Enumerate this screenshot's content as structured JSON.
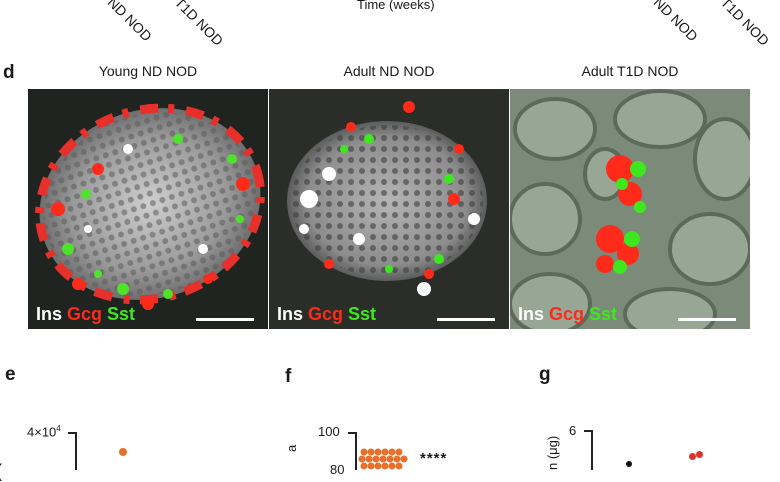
{
  "top_fragments": {
    "time_label": "Time (weeks)",
    "left_labels": [
      "ND NOD",
      "T1D NOD"
    ],
    "right_labels": [
      "ND NOD",
      "T1D NOD"
    ]
  },
  "panel_d": {
    "letter": "d",
    "images": [
      {
        "title": "Young ND NOD",
        "stain": {
          "ins": "Ins",
          "gcg": "Gcg",
          "sst": "Sst"
        }
      },
      {
        "title": "Adult ND NOD",
        "stain": {
          "ins": "Ins",
          "gcg": "Gcg",
          "sst": "Sst"
        }
      },
      {
        "title": "Adult T1D NOD",
        "stain": {
          "ins": "Ins",
          "gcg": "Gcg",
          "sst": "Sst"
        }
      }
    ],
    "colors": {
      "ins": "#ffffff",
      "gcg": "#ff2a1a",
      "sst": "#3ee81e"
    }
  },
  "panel_e": {
    "letter": "e",
    "y_tick_top": "4×10",
    "y_tick_exp": "4",
    "left_glyph": "("
  },
  "panel_f": {
    "letter": "f",
    "y_tick_top": "100",
    "y_tick_partial": "80",
    "ylabel_fragment": "a",
    "significance": "****",
    "dot_color": "#e8702a"
  },
  "panel_g": {
    "letter": "g",
    "y_tick_top": "6",
    "ylabel_fragment": "n (μg)",
    "dot_colors": [
      "#111111",
      "#e0302a"
    ]
  }
}
